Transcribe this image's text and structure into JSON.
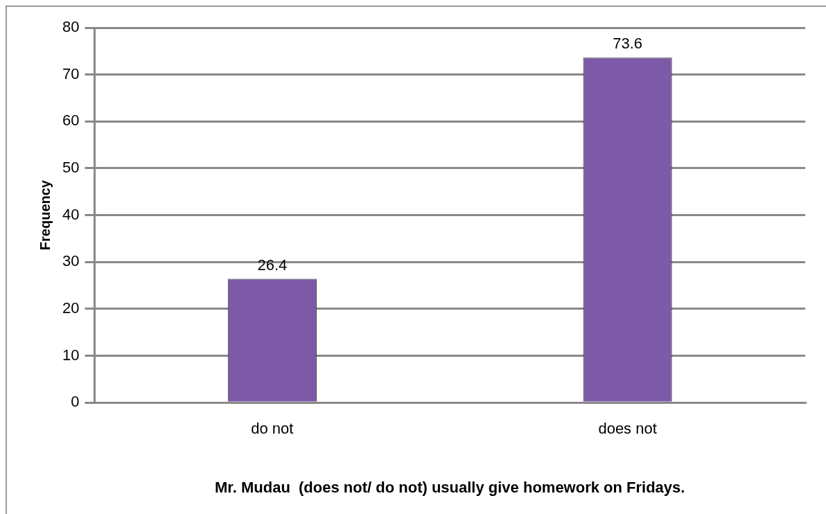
{
  "chart_data": {
    "type": "bar",
    "xlabel": "Mr. Mudau  (does not/ do not) usually give homework on Fridays.",
    "ylabel": "Frequency",
    "categories": [
      "do not",
      "does not"
    ],
    "values": [
      26.4,
      73.6
    ],
    "color": "#7d5aa8",
    "ylim": [
      0,
      80
    ],
    "yticks": [
      0,
      10,
      20,
      30,
      40,
      50,
      60,
      70,
      80
    ],
    "grid": "y",
    "data_labels": true,
    "legend": false
  }
}
